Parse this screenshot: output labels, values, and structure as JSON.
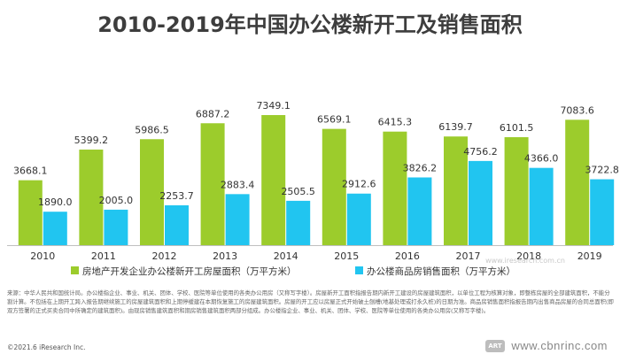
{
  "chart_data": {
    "type": "bar",
    "title": "2010-2019年中国办公楼新开工及销售面积",
    "categories": [
      "2010",
      "2011",
      "2012",
      "2013",
      "2014",
      "2015",
      "2016",
      "2017",
      "2018",
      "2019"
    ],
    "series": [
      {
        "name": "房地产开发企业办公楼新开工房屋面积（万平方米）",
        "color": "#9ccc2c",
        "values": [
          3668.1,
          5399.2,
          5986.5,
          6887.2,
          7349.1,
          6569.1,
          6415.3,
          6139.7,
          6101.5,
          7083.6
        ],
        "labels": [
          "3668.1",
          "5399.2",
          "5986.5",
          "6887.2",
          "7349.1",
          "6569.1",
          "6415.3",
          "6139.7",
          "6101.5",
          "7083.6"
        ]
      },
      {
        "name": "办公楼商品房销售面积（万平方米）",
        "color": "#21c5f0",
        "values": [
          1890.0,
          2005.0,
          2253.7,
          2883.4,
          2505.5,
          2912.6,
          3826.2,
          4756.2,
          4366.0,
          3722.8
        ],
        "labels": [
          "1890.0",
          "2005.0",
          "2253.7",
          "2883.4",
          "2505.5",
          "2912.6",
          "3826.2",
          "4756.2",
          "4366.0",
          "3722.8"
        ]
      }
    ],
    "ylim": [
      0,
      8000
    ],
    "grid": false,
    "legend_position": "bottom",
    "xlabel": "",
    "ylabel": ""
  },
  "notes": {
    "source": "来源：中华人民共和国统计局。办公楼指企业、事业、机关、团体、学校、医院等单位使用的各类办公用房（又称写字楼）。房屋新开工面积指报告期内新开工建设的房屋建筑面积，以单位工程为核算对象，即整栋房屋的全部建筑面积，不能分割计算。不包括在上期开工跨入报告期继续施工的房屋建筑面积和上期停缓建在本期恢复施工的房屋建筑面积。房屋的开工应以房屋正式开始破土刨槽(地基处理或打永久桩)的日期为准。商品房销售面积指报告期内出售商品房屋的合同总面积(即双方签署的正式买卖合同中所确定的建筑面积)。由现房销售建筑面积和期房销售建筑面积两部分组成。办公楼指企业、事业、机关、团体、学校、医院等单位使用的各类办公用房(又称写字楼)。"
  },
  "footer": {
    "copyright": "©2021.6 iResearch Inc.",
    "website": "www.cbnrinc.com",
    "watermark": "www.iresearch.com.cn",
    "logo_text": "ART"
  }
}
